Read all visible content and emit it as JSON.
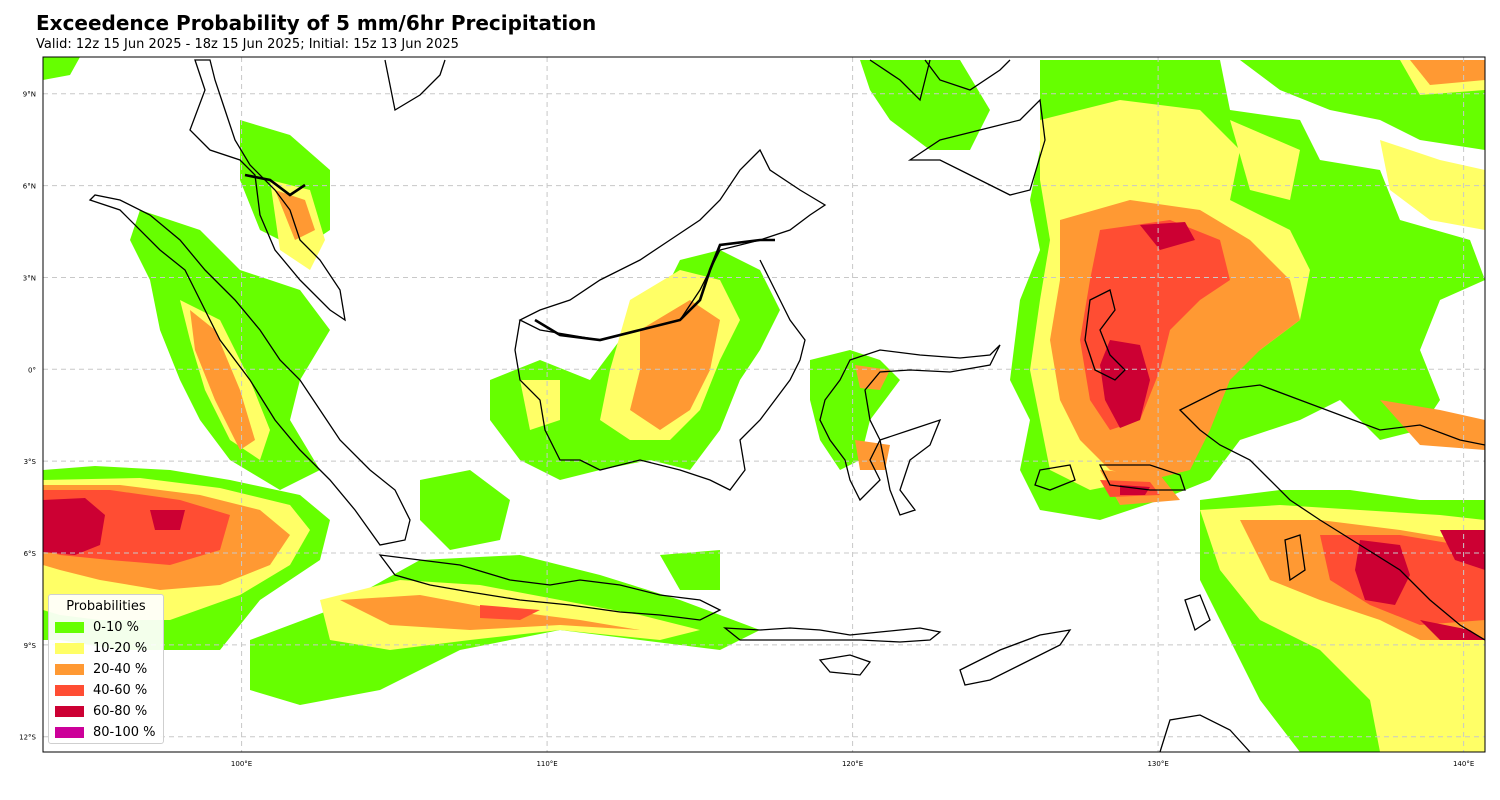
{
  "title": "Exceedence Probability of 5 mm/6hr Precipitation",
  "subtitle": "Valid: 12z 15 Jun 2025 - 18z 15 Jun 2025; Initial: 15z 13 Jun 2025",
  "map": {
    "lon_range": [
      93.5,
      140.7
    ],
    "lat_range": [
      -12.5,
      10.2
    ],
    "lon_ticks": [
      {
        "value": 100,
        "label": "100°E"
      },
      {
        "value": 110,
        "label": "110°E"
      },
      {
        "value": 120,
        "label": "120°E"
      },
      {
        "value": 130,
        "label": "130°E"
      },
      {
        "value": 140,
        "label": "140°E"
      }
    ],
    "lat_ticks": [
      {
        "value": 9,
        "label": "9°N"
      },
      {
        "value": 6,
        "label": "6°N"
      },
      {
        "value": 3,
        "label": "3°N"
      },
      {
        "value": 0,
        "label": "0°"
      },
      {
        "value": -3,
        "label": "3°S"
      },
      {
        "value": -6,
        "label": "6°S"
      },
      {
        "value": -9,
        "label": "9°S"
      },
      {
        "value": -12,
        "label": "12°S"
      }
    ],
    "gridlines": true
  },
  "legend": {
    "title": "Probabilities",
    "placement": "lower-left",
    "items": [
      {
        "label": "0-10 %",
        "color": "#66ff00"
      },
      {
        "label": "10-20 %",
        "color": "#ffff66"
      },
      {
        "label": "20-40 %",
        "color": "#ff9933"
      },
      {
        "label": "40-60 %",
        "color": "#ff4d33"
      },
      {
        "label": "60-80 %",
        "color": "#cc0033"
      },
      {
        "label": "80-100 %",
        "color": "#cc0099"
      }
    ]
  },
  "land_color": "#ffffff",
  "coastline_color": "#000000"
}
